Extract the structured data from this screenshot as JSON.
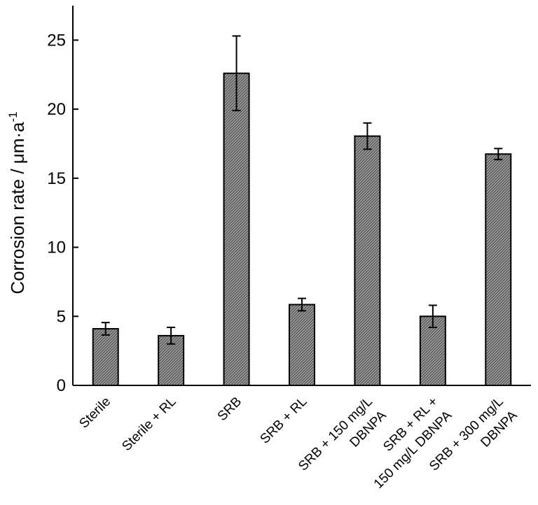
{
  "chart_data": {
    "type": "bar",
    "ylabel": "Corrosion rate / μm·a",
    "ylabel_superscript": "-1",
    "ylim": [
      0,
      27.5
    ],
    "yticks": [
      0,
      5,
      10,
      15,
      20,
      25
    ],
    "categories": [
      [
        "Sterile"
      ],
      [
        "Sterile + RL"
      ],
      [
        "SRB"
      ],
      [
        "SRB + RL"
      ],
      [
        "SRB + 150 mg/L",
        "DBNPA"
      ],
      [
        "SRB + RL +",
        "150 mg/L DBNPA"
      ],
      [
        "SRB + 300 mg/L",
        "DBNPA"
      ]
    ],
    "values": [
      4.1,
      3.6,
      22.6,
      5.85,
      18.05,
      5.0,
      16.75
    ],
    "errors": [
      0.45,
      0.6,
      2.7,
      0.45,
      0.95,
      0.8,
      0.4
    ],
    "bar_color": "#7a7a7a",
    "grid": false,
    "legend": "none"
  }
}
